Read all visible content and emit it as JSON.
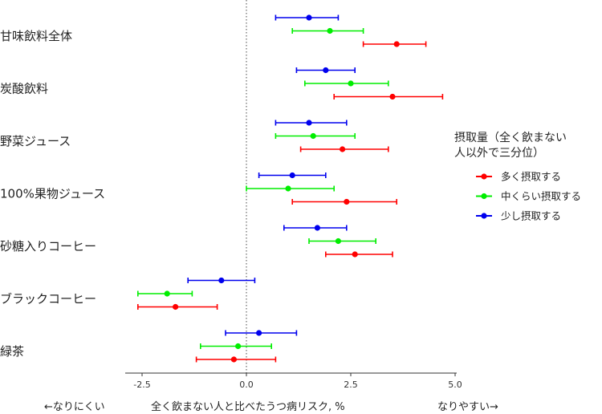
{
  "chart_data": {
    "type": "forest",
    "xlim": [
      -3.0,
      5.0
    ],
    "x_ticks": [
      -2.5,
      0.0,
      2.5,
      5.0
    ],
    "x_tick_labels": [
      "-2.5",
      "0.0",
      "2.5",
      "5.0"
    ],
    "reference_line_x": 0.0,
    "xlabel": "全く飲まない人と比べたうつ病リスク, %",
    "xlabel_left": "←なりにくい",
    "xlabel_right": "なりやすい→",
    "legend_title": [
      "摂取量（全く飲まない",
      "人以外で三分位）"
    ],
    "legend_placement": "right",
    "categories": [
      "甘味飲料全体",
      "炭酸飲料",
      "野菜ジュース",
      "100%果物ジュース",
      "砂糖入りコーヒー",
      "ブラックコーヒー",
      "緑茶"
    ],
    "series": [
      {
        "name": "多く摂取する",
        "color": "#ff0000",
        "values": [
          3.6,
          3.5,
          2.3,
          2.4,
          2.6,
          -1.7,
          -0.3
        ],
        "lower": [
          2.8,
          2.1,
          1.3,
          1.1,
          1.9,
          -2.6,
          -1.2
        ],
        "upper": [
          4.3,
          4.7,
          3.4,
          3.6,
          3.5,
          -0.7,
          0.7
        ]
      },
      {
        "name": "中くらい摂取する",
        "color": "#00ee00",
        "values": [
          2.0,
          2.5,
          1.6,
          1.0,
          2.2,
          -1.9,
          -0.2
        ],
        "lower": [
          1.1,
          1.4,
          0.7,
          0.0,
          1.5,
          -2.6,
          -1.1
        ],
        "upper": [
          2.8,
          3.4,
          2.6,
          2.1,
          3.1,
          -1.3,
          0.6
        ]
      },
      {
        "name": "少し摂取する",
        "color": "#0000ee",
        "values": [
          1.5,
          1.9,
          1.5,
          1.1,
          1.7,
          -0.6,
          0.3
        ],
        "lower": [
          0.7,
          1.2,
          0.7,
          0.3,
          0.9,
          -1.4,
          -0.5
        ],
        "upper": [
          2.2,
          2.6,
          2.4,
          1.9,
          2.4,
          0.2,
          1.2
        ]
      }
    ]
  }
}
